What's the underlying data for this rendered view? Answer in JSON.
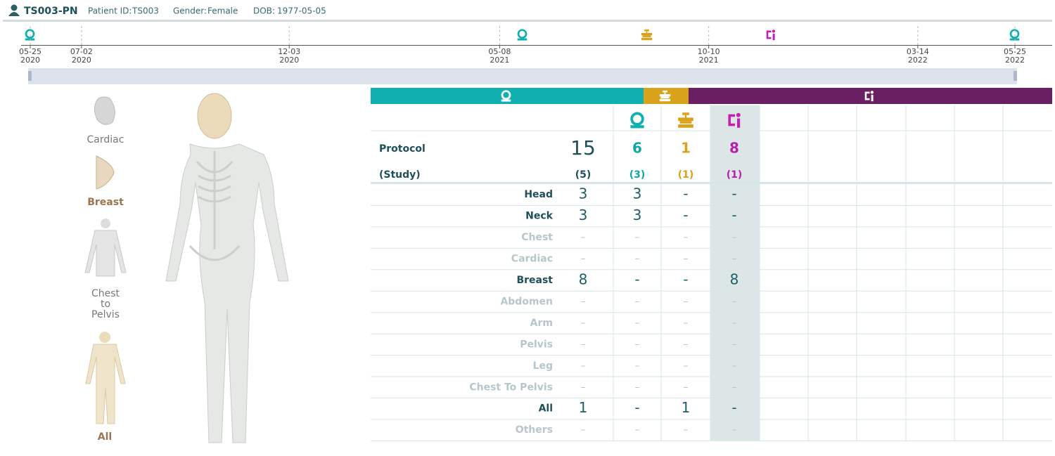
{
  "header": {
    "patient_name": "TS003-PN",
    "patient_id_label": "Patient ID:",
    "patient_id": "TS003",
    "gender_label": "Gender:",
    "gender": "Female",
    "dob_label": "DOB:",
    "dob": "1977-05-05"
  },
  "timeline": {
    "ticks": [
      {
        "date": "05-25",
        "year": "2020"
      },
      {
        "date": "07-02",
        "year": "2020"
      },
      {
        "date": "12-03",
        "year": "2020"
      },
      {
        "date": "05-08",
        "year": "2021"
      },
      {
        "date": "10-10",
        "year": "2021"
      },
      {
        "date": "03-14",
        "year": "2022"
      },
      {
        "date": "05-25",
        "year": "2022"
      }
    ]
  },
  "body_parts": [
    "Cardiac",
    "Breast",
    "Chest to Pelvis",
    "All"
  ],
  "summary": {
    "protocol_label": "Protocol",
    "study_label": "(Study)",
    "protocol": [
      15,
      6,
      1,
      8
    ],
    "study": [
      "(5)",
      "(3)",
      "(1)",
      "(1)"
    ]
  },
  "rows": [
    {
      "label": "Head",
      "cells": [
        "3",
        "3",
        "-",
        "-"
      ]
    },
    {
      "label": "Neck",
      "cells": [
        "3",
        "3",
        "-",
        "-"
      ]
    },
    {
      "label": "Chest",
      "cells": [
        "–",
        "–",
        "–",
        "–"
      ]
    },
    {
      "label": "Cardiac",
      "cells": [
        "–",
        "–",
        "–",
        "–"
      ]
    },
    {
      "label": "Breast",
      "cells": [
        "8",
        "-",
        "-",
        "8"
      ]
    },
    {
      "label": "Abdomen",
      "cells": [
        "–",
        "–",
        "–",
        "–"
      ]
    },
    {
      "label": "Arm",
      "cells": [
        "–",
        "–",
        "–",
        "–"
      ]
    },
    {
      "label": "Pelvis",
      "cells": [
        "–",
        "–",
        "–",
        "–"
      ]
    },
    {
      "label": "Leg",
      "cells": [
        "–",
        "–",
        "–",
        "–"
      ]
    },
    {
      "label": "Chest To Pelvis",
      "cells": [
        "–",
        "–",
        "–",
        "–"
      ]
    },
    {
      "label": "All",
      "cells": [
        "1",
        "-",
        "1",
        "-"
      ]
    },
    {
      "label": "Others",
      "cells": [
        "–",
        "–",
        "–",
        "–"
      ]
    }
  ]
}
